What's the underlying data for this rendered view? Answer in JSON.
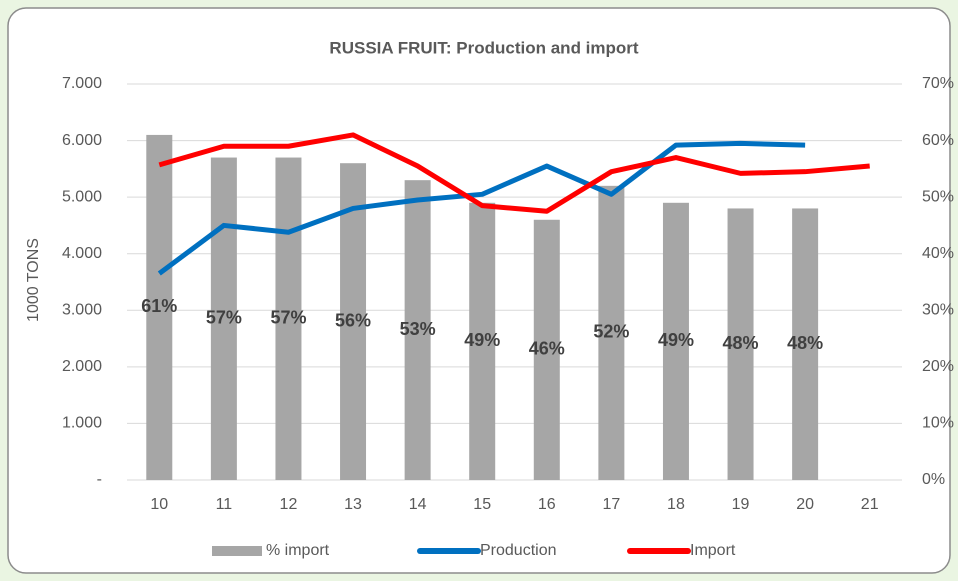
{
  "chart_data": {
    "type": "bar-line",
    "title": "RUSSIA FRUIT: Production and import",
    "y_label": "1000 TONS",
    "categories": [
      "10",
      "11",
      "12",
      "13",
      "14",
      "15",
      "16",
      "17",
      "18",
      "19",
      "20",
      "21"
    ],
    "ylim": [
      0,
      7000
    ],
    "yticks": [
      {
        "value": 0,
        "label": "-"
      },
      {
        "value": 1000,
        "label": "1.000"
      },
      {
        "value": 2000,
        "label": "2.000"
      },
      {
        "value": 3000,
        "label": "3.000"
      },
      {
        "value": 4000,
        "label": "4.000"
      },
      {
        "value": 5000,
        "label": "5.000"
      },
      {
        "value": 6000,
        "label": "6.000"
      },
      {
        "value": 7000,
        "label": "7.000"
      }
    ],
    "y2lim": [
      0,
      70
    ],
    "y2ticks": [
      {
        "value": 0,
        "label": "0%"
      },
      {
        "value": 10,
        "label": "10%"
      },
      {
        "value": 20,
        "label": "20%"
      },
      {
        "value": 30,
        "label": "30%"
      },
      {
        "value": 40,
        "label": "40%"
      },
      {
        "value": 50,
        "label": "50%"
      },
      {
        "value": 60,
        "label": "60%"
      },
      {
        "value": 70,
        "label": "70%"
      }
    ],
    "grid": true,
    "legend": "bottom",
    "series": [
      {
        "name": "% import",
        "kind": "bar",
        "axis": "y2",
        "color": "#a6a6a6",
        "values": [
          61,
          57,
          57,
          56,
          53,
          49,
          46,
          52,
          49,
          48,
          48,
          null
        ],
        "value_labels": [
          "61%",
          "57%",
          "57%",
          "56%",
          "53%",
          "49%",
          "46%",
          "52%",
          "49%",
          "48%",
          "48%",
          null
        ]
      },
      {
        "name": "Production",
        "kind": "line",
        "color": "#0070c0",
        "values": [
          3650,
          4500,
          4380,
          4800,
          4950,
          5050,
          5550,
          5050,
          5920,
          5950,
          5920,
          null
        ]
      },
      {
        "name": "Import",
        "kind": "line",
        "color": "#ff0000",
        "values": [
          5570,
          5900,
          5900,
          6100,
          5550,
          4850,
          4750,
          5450,
          5700,
          5420,
          5450,
          5550
        ]
      }
    ]
  }
}
